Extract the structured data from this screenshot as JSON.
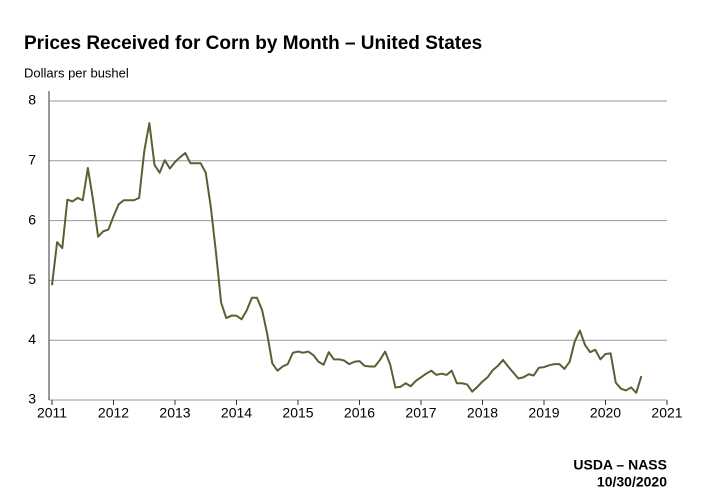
{
  "chart_data": {
    "type": "line",
    "title": "Prices Received for Corn by Month – United States",
    "y_label": "Dollars per bushel",
    "source": "USDA – NASS",
    "date": "10/30/2020",
    "xlim": [
      2011,
      2021
    ],
    "xticks": [
      2011,
      2012,
      2013,
      2014,
      2015,
      2016,
      2017,
      2018,
      2019,
      2020,
      2021
    ],
    "ylim": [
      3,
      8
    ],
    "yticks": [
      3,
      4,
      5,
      6,
      7,
      8
    ],
    "grid": true,
    "x": [
      2011,
      2011.083,
      2011.167,
      2011.25,
      2011.333,
      2011.417,
      2011.5,
      2011.583,
      2011.667,
      2011.75,
      2011.833,
      2011.917,
      2012,
      2012.083,
      2012.167,
      2012.25,
      2012.333,
      2012.417,
      2012.5,
      2012.583,
      2012.667,
      2012.75,
      2012.833,
      2012.917,
      2013,
      2013.083,
      2013.167,
      2013.25,
      2013.333,
      2013.417,
      2013.5,
      2013.583,
      2013.667,
      2013.75,
      2013.833,
      2013.917,
      2014,
      2014.083,
      2014.167,
      2014.25,
      2014.333,
      2014.417,
      2014.5,
      2014.583,
      2014.667,
      2014.75,
      2014.833,
      2014.917,
      2015,
      2015.083,
      2015.167,
      2015.25,
      2015.333,
      2015.417,
      2015.5,
      2015.583,
      2015.667,
      2015.75,
      2015.833,
      2015.917,
      2016,
      2016.083,
      2016.167,
      2016.25,
      2016.333,
      2016.417,
      2016.5,
      2016.583,
      2016.667,
      2016.75,
      2016.833,
      2016.917,
      2017,
      2017.083,
      2017.167,
      2017.25,
      2017.333,
      2017.417,
      2017.5,
      2017.583,
      2017.667,
      2017.75,
      2017.833,
      2017.917,
      2018,
      2018.083,
      2018.167,
      2018.25,
      2018.333,
      2018.417,
      2018.5,
      2018.583,
      2018.667,
      2018.75,
      2018.833,
      2018.917,
      2019,
      2019.083,
      2019.167,
      2019.25,
      2019.333,
      2019.417,
      2019.5,
      2019.583,
      2019.667,
      2019.75,
      2019.833,
      2019.917,
      2020,
      2020.083,
      2020.167,
      2020.25,
      2020.333,
      2020.417,
      2020.5,
      2020.583
    ],
    "series": [
      {
        "name": "Corn",
        "color": "#5b5f32",
        "values": [
          4.92,
          5.64,
          5.54,
          6.35,
          6.32,
          6.38,
          6.34,
          6.88,
          6.35,
          5.73,
          5.82,
          5.85,
          6.07,
          6.27,
          6.34,
          6.34,
          6.34,
          6.38,
          7.16,
          7.63,
          6.93,
          6.8,
          7.01,
          6.87,
          6.98,
          7.06,
          7.13,
          6.96,
          6.96,
          6.96,
          6.8,
          6.22,
          5.46,
          4.63,
          4.37,
          4.41,
          4.41,
          4.35,
          4.5,
          4.71,
          4.71,
          4.5,
          4.1,
          3.61,
          3.49,
          3.56,
          3.6,
          3.79,
          3.81,
          3.79,
          3.81,
          3.75,
          3.64,
          3.59,
          3.8,
          3.68,
          3.68,
          3.66,
          3.6,
          3.64,
          3.65,
          3.57,
          3.56,
          3.56,
          3.67,
          3.81,
          3.59,
          3.21,
          3.22,
          3.28,
          3.23,
          3.32,
          3.38,
          3.44,
          3.49,
          3.42,
          3.44,
          3.42,
          3.49,
          3.28,
          3.28,
          3.26,
          3.14,
          3.22,
          3.31,
          3.38,
          3.5,
          3.57,
          3.67,
          3.56,
          3.46,
          3.36,
          3.38,
          3.43,
          3.41,
          3.54,
          3.55,
          3.58,
          3.6,
          3.6,
          3.52,
          3.64,
          3.98,
          4.16,
          3.92,
          3.8,
          3.84,
          3.68,
          3.77,
          3.78,
          3.29,
          3.19,
          3.16,
          3.21,
          3.12,
          3.4
        ]
      }
    ]
  }
}
